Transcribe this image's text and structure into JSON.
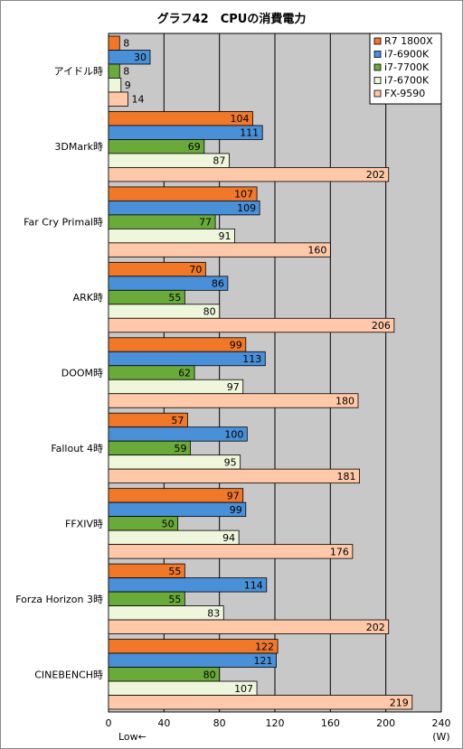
{
  "chart_data": {
    "type": "bar",
    "orientation": "horizontal",
    "title": "グラフ42　CPUの消費電力",
    "xlabel_left": "Low←",
    "unit": "(W)",
    "xlim": [
      0,
      240
    ],
    "xticks": [
      0,
      40,
      80,
      120,
      160,
      200,
      240
    ],
    "grid": true,
    "legend_position": "top-right",
    "categories": [
      "アイドル時",
      "3DMark時",
      "Far Cry Primal時",
      "ARK時",
      "DOOM時",
      "Fallout 4時",
      "FFXIV時",
      "Forza Horizon 3時",
      "CINEBENCH時"
    ],
    "series": [
      {
        "name": "R7 1800X",
        "color": "#f07828",
        "values": [
          8,
          104,
          107,
          70,
          99,
          57,
          97,
          55,
          122
        ]
      },
      {
        "name": "i7-6900K",
        "color": "#4a90d8",
        "values": [
          30,
          111,
          109,
          86,
          113,
          100,
          99,
          114,
          121
        ]
      },
      {
        "name": "i7-7700K",
        "color": "#6aaa3a",
        "values": [
          8,
          69,
          77,
          55,
          62,
          59,
          50,
          55,
          80
        ]
      },
      {
        "name": "i7-6700K",
        "color": "#eef6dc",
        "values": [
          9,
          87,
          91,
          80,
          97,
          95,
          94,
          83,
          107
        ]
      },
      {
        "name": "FX-9590",
        "color": "#ffc8a8",
        "values": [
          14,
          202,
          160,
          206,
          180,
          181,
          176,
          202,
          219
        ]
      }
    ]
  }
}
